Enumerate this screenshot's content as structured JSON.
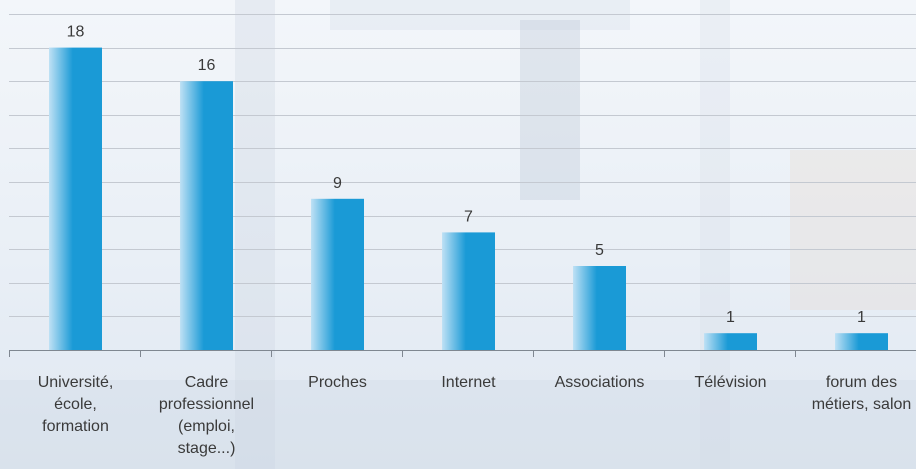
{
  "chart_data": {
    "type": "bar",
    "categories": [
      [
        "Université,",
        "école,",
        "formation"
      ],
      [
        "Cadre",
        "professionnel",
        "(emploi,",
        "stage...)"
      ],
      [
        "Proches"
      ],
      [
        "Internet"
      ],
      [
        "Associations"
      ],
      [
        "Télévision"
      ],
      [
        "forum des",
        "métiers, salon"
      ]
    ],
    "values": [
      18,
      16,
      9,
      7,
      5,
      1,
      1
    ],
    "ylim": [
      0,
      20
    ],
    "grid": true,
    "bar_color": "#1a9ad6",
    "bar_color_light": "#bfe1f5",
    "gridline_color": "#c4c9d1",
    "axis_color": "#7f8791",
    "label_color": "#3a3a3a"
  }
}
